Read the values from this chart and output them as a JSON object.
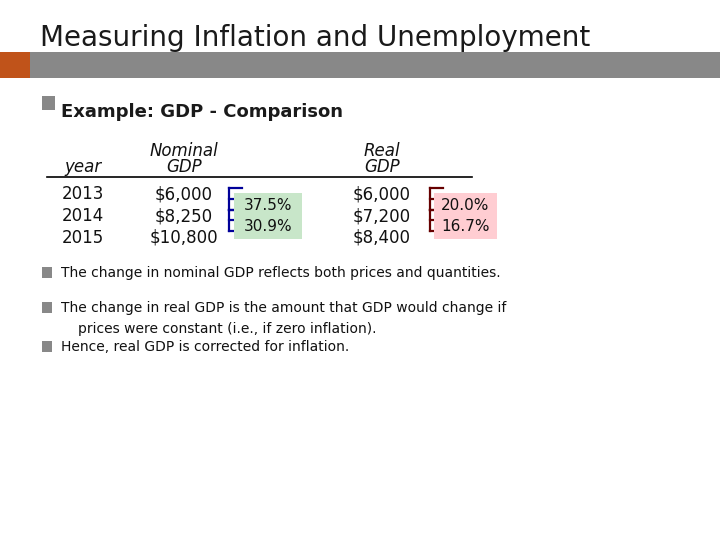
{
  "title": "Measuring Inflation and Unemployment",
  "subtitle": "Example: GDP - Comparison",
  "header_bar_color": "#888888",
  "header_bar_orange": "#c0531a",
  "bg_color": "#ffffff",
  "years": [
    "2013",
    "2014",
    "2015"
  ],
  "nominal_gdp": [
    "$6,000",
    "$8,250",
    "$10,800"
  ],
  "real_gdp": [
    "$6,000",
    "$7,200",
    "$8,400"
  ],
  "nominal_pct_1": "37.5%",
  "nominal_pct_2": "30.9%",
  "real_pct_1": "20.0%",
  "real_pct_2": "16.7%",
  "nominal_pct_bg": "#c8e6c9",
  "real_pct_bg": "#ffcdd2",
  "brace_nom_color": "#000099",
  "brace_real_color": "#660000",
  "bullet1": "The change in nominal GDP reflects both prices and quantities.",
  "bullet2a": "The change in real GDP is the amount that GDP would change if",
  "bullet2b": "prices were constant (i.e., if zero inflation).",
  "bullet3": "Hence, real GDP is corrected for inflation.",
  "bullet_box_color": "#888888"
}
